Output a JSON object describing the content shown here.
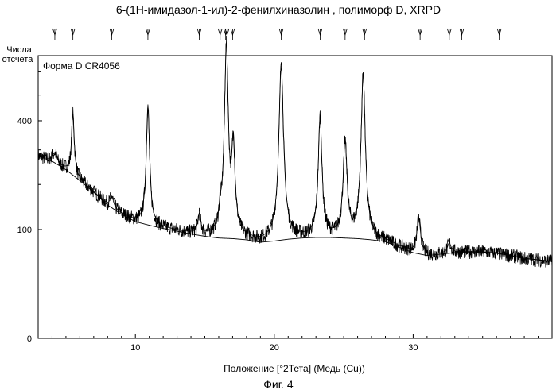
{
  "chart_data": {
    "type": "line",
    "title": "6-(1H-имидазол-1-ил)-2-фенилхиназолин , полиморф D, XRPD",
    "ylabel_line1": "Числа",
    "ylabel_line2": "отсчета",
    "xlabel": "Положение [°2Тета] (Медь (Cu))",
    "legend_label": "Форма D CR4056",
    "caption": "Фиг. 4",
    "x_range": [
      3,
      40
    ],
    "y_transform": "sqrt",
    "y_range": [
      0,
      660
    ],
    "x_ticks": [
      10,
      20,
      30
    ],
    "y_ticks": [
      0,
      100,
      400
    ],
    "peak_markers": [
      4.2,
      5.5,
      8.3,
      10.9,
      14.6,
      16.1,
      16.5,
      16.6,
      17.0,
      20.5,
      23.3,
      25.1,
      26.5,
      30.5,
      32.6,
      33.5,
      36.2
    ],
    "baseline": {
      "x": [
        3,
        4,
        5,
        6,
        7,
        8,
        9,
        10,
        11,
        12,
        13,
        14,
        15,
        16,
        17,
        18,
        19,
        20,
        21,
        22,
        23,
        24,
        25,
        26,
        27,
        28,
        29,
        30,
        31,
        32,
        33,
        34,
        35,
        36,
        37,
        38,
        39,
        40
      ],
      "y": [
        280,
        265,
        240,
        210,
        180,
        150,
        130,
        115,
        108,
        102,
        97,
        92,
        88,
        85,
        84,
        82,
        78,
        80,
        83,
        85,
        86,
        86,
        85,
        84,
        82,
        79,
        70,
        62,
        58,
        60,
        62,
        63,
        63,
        61,
        58,
        54,
        52,
        50
      ]
    },
    "peaks": [
      {
        "x": 4.2,
        "height": 30,
        "fwhm": 0.35
      },
      {
        "x": 5.5,
        "height": 200,
        "fwhm": 0.22
      },
      {
        "x": 8.3,
        "height": 25,
        "fwhm": 0.3
      },
      {
        "x": 10.9,
        "height": 345,
        "fwhm": 0.25
      },
      {
        "x": 14.6,
        "height": 38,
        "fwhm": 0.25
      },
      {
        "x": 16.1,
        "height": 30,
        "fwhm": 0.2
      },
      {
        "x": 16.55,
        "height": 640,
        "fwhm": 0.28
      },
      {
        "x": 17.05,
        "height": 230,
        "fwhm": 0.25
      },
      {
        "x": 20.5,
        "height": 560,
        "fwhm": 0.32
      },
      {
        "x": 23.3,
        "height": 330,
        "fwhm": 0.27
      },
      {
        "x": 25.1,
        "height": 240,
        "fwhm": 0.3
      },
      {
        "x": 26.4,
        "height": 510,
        "fwhm": 0.3
      },
      {
        "x": 30.4,
        "height": 60,
        "fwhm": 0.3
      },
      {
        "x": 32.6,
        "height": 15,
        "fwhm": 0.3
      }
    ]
  }
}
